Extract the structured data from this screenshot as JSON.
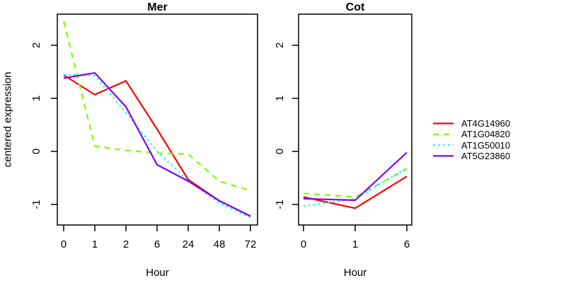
{
  "figure": {
    "background": "#FFFFFF",
    "axis_color": "#000000",
    "text_color": "#000000"
  },
  "legend": {
    "position": "right-margin",
    "entries": [
      "AT4G14960",
      "AT1G04820",
      "AT1G50010",
      "AT5G23860"
    ]
  },
  "chart_data": [
    {
      "type": "line",
      "title": "Mer",
      "xlabel": "Hour",
      "ylabel": "centered expression",
      "categories": [
        "0",
        "1",
        "2",
        "6",
        "24",
        "48",
        "72"
      ],
      "x_scale": "equally-spaced-categories",
      "y_ticks": [
        "2",
        "1",
        "0",
        "-1"
      ],
      "y_tick_values": [
        2,
        1,
        0,
        -1
      ],
      "ylim": [
        -1.4,
        2.6
      ],
      "grid": false,
      "series": [
        {
          "name": "AT4G14960",
          "color": "#FF0000",
          "style": "solid",
          "values": [
            1.44,
            1.07,
            1.33,
            0.42,
            -0.53,
            -0.93,
            -1.22
          ]
        },
        {
          "name": "AT1G04820",
          "color": "#7CFC00",
          "style": "dashed",
          "values": [
            2.45,
            0.1,
            0.02,
            -0.03,
            -0.05,
            -0.56,
            -0.74
          ]
        },
        {
          "name": "AT1G50010",
          "color": "#00FFFF",
          "style": "dotted",
          "values": [
            1.45,
            1.43,
            0.73,
            0.0,
            -0.55,
            -0.97,
            -1.25
          ]
        },
        {
          "name": "AT5G23860",
          "color": "#7F00FF",
          "style": "solid",
          "values": [
            1.38,
            1.48,
            0.84,
            -0.25,
            -0.56,
            -0.93,
            -1.22
          ]
        }
      ]
    },
    {
      "type": "line",
      "title": "Cot",
      "xlabel": "Hour",
      "ylabel": "",
      "categories": [
        "0",
        "1",
        "6"
      ],
      "x_scale": "equally-spaced-categories",
      "y_ticks": [
        "2",
        "1",
        "0",
        "-1"
      ],
      "y_tick_values": [
        2,
        1,
        0,
        -1
      ],
      "ylim": [
        -1.4,
        2.6
      ],
      "grid": false,
      "series": [
        {
          "name": "AT4G14960",
          "color": "#FF0000",
          "style": "solid",
          "values": [
            -0.86,
            -1.07,
            -0.47
          ]
        },
        {
          "name": "AT1G04820",
          "color": "#7CFC00",
          "style": "dashed",
          "values": [
            -0.79,
            -0.86,
            -0.33
          ]
        },
        {
          "name": "AT1G50010",
          "color": "#00FFFF",
          "style": "dotted",
          "values": [
            -1.03,
            -0.9,
            -0.31
          ]
        },
        {
          "name": "AT5G23860",
          "color": "#7F00FF",
          "style": "solid",
          "values": [
            -0.89,
            -0.92,
            -0.02
          ]
        }
      ]
    }
  ]
}
